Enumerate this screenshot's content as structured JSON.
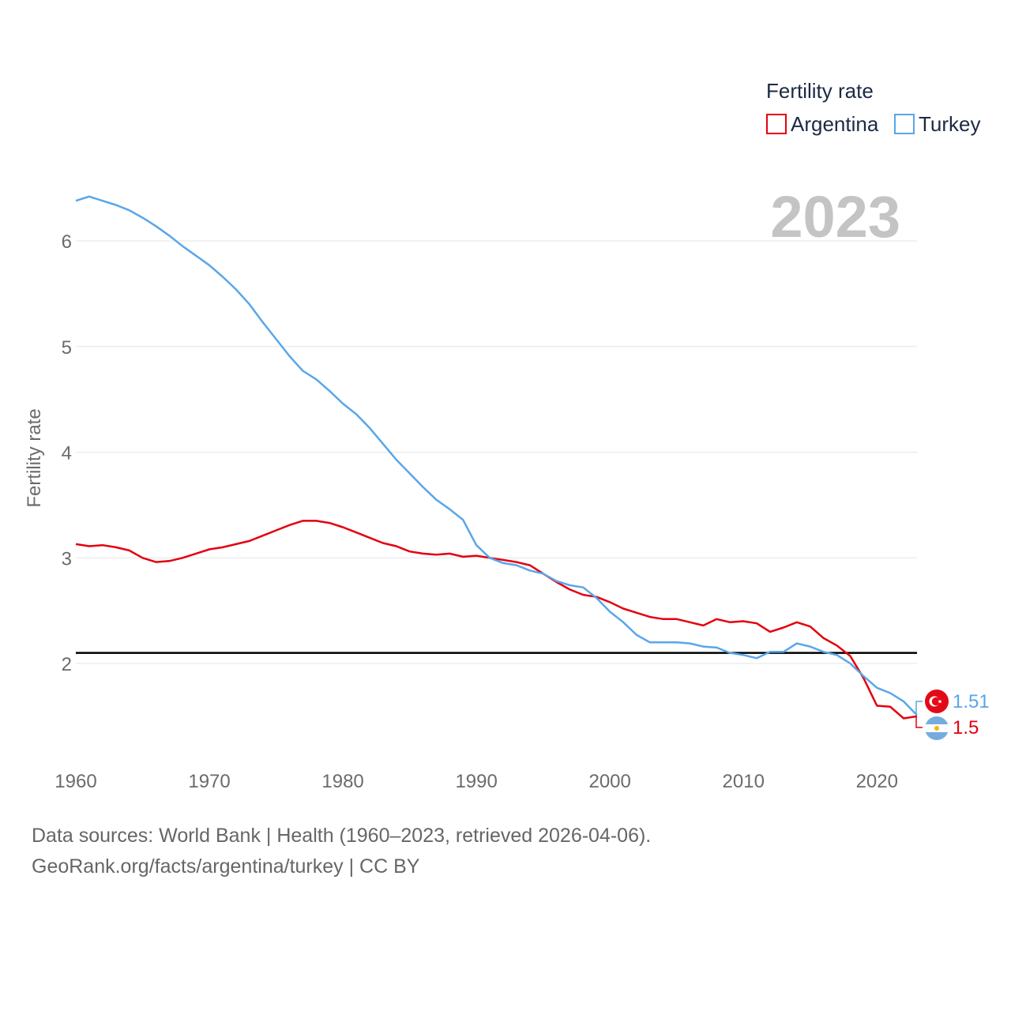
{
  "chart_data": {
    "type": "line",
    "title": "",
    "year_display": "2023",
    "ylabel": "Fertility rate",
    "xlabel": "",
    "x_ticks": [
      "1960",
      "1970",
      "1980",
      "1990",
      "2000",
      "2010",
      "2020"
    ],
    "y_ticks": [
      "2",
      "3",
      "4",
      "5",
      "6"
    ],
    "xlim": [
      1960,
      2023
    ],
    "ylim": [
      1.5,
      6.4
    ],
    "reference_line": 2.1,
    "legend": {
      "title": "Fertility rate",
      "position": "top-right"
    },
    "x": [
      1960,
      1961,
      1962,
      1963,
      1964,
      1965,
      1966,
      1967,
      1968,
      1969,
      1970,
      1971,
      1972,
      1973,
      1974,
      1975,
      1976,
      1977,
      1978,
      1979,
      1980,
      1981,
      1982,
      1983,
      1984,
      1985,
      1986,
      1987,
      1988,
      1989,
      1990,
      1991,
      1992,
      1993,
      1994,
      1995,
      1996,
      1997,
      1998,
      1999,
      2000,
      2001,
      2002,
      2003,
      2004,
      2005,
      2006,
      2007,
      2008,
      2009,
      2010,
      2011,
      2012,
      2013,
      2014,
      2015,
      2016,
      2017,
      2018,
      2019,
      2020,
      2021,
      2022,
      2023
    ],
    "series": [
      {
        "name": "Argentina",
        "color": "#e4000f",
        "end_label": "1.5",
        "values": [
          3.13,
          3.11,
          3.12,
          3.1,
          3.07,
          3.0,
          2.96,
          2.97,
          3.0,
          3.04,
          3.08,
          3.1,
          3.13,
          3.16,
          3.21,
          3.26,
          3.31,
          3.35,
          3.35,
          3.33,
          3.29,
          3.24,
          3.19,
          3.14,
          3.11,
          3.06,
          3.04,
          3.03,
          3.04,
          3.01,
          3.02,
          3.0,
          2.98,
          2.96,
          2.93,
          2.85,
          2.77,
          2.7,
          2.65,
          2.63,
          2.58,
          2.52,
          2.48,
          2.44,
          2.42,
          2.42,
          2.39,
          2.36,
          2.42,
          2.39,
          2.4,
          2.38,
          2.3,
          2.34,
          2.39,
          2.35,
          2.24,
          2.17,
          2.07,
          1.86,
          1.6,
          1.59,
          1.48,
          1.5
        ]
      },
      {
        "name": "Turkey",
        "color": "#5aa6e8",
        "end_label": "1.51",
        "values": [
          6.38,
          6.42,
          6.38,
          6.34,
          6.29,
          6.22,
          6.14,
          6.05,
          5.95,
          5.86,
          5.77,
          5.66,
          5.54,
          5.4,
          5.23,
          5.07,
          4.91,
          4.77,
          4.69,
          4.58,
          4.46,
          4.36,
          4.23,
          4.08,
          3.93,
          3.8,
          3.67,
          3.55,
          3.46,
          3.36,
          3.12,
          3.0,
          2.95,
          2.93,
          2.88,
          2.85,
          2.78,
          2.74,
          2.72,
          2.62,
          2.49,
          2.39,
          2.27,
          2.2,
          2.2,
          2.2,
          2.19,
          2.16,
          2.15,
          2.1,
          2.08,
          2.05,
          2.11,
          2.11,
          2.19,
          2.16,
          2.11,
          2.08,
          2.0,
          1.88,
          1.77,
          1.72,
          1.64,
          1.51
        ]
      }
    ]
  },
  "footer": {
    "line1": "Data sources: World Bank | Health (1960–2023, retrieved 2026-04-06).",
    "line2": "GeoRank.org/facts/argentina/turkey | CC BY"
  }
}
